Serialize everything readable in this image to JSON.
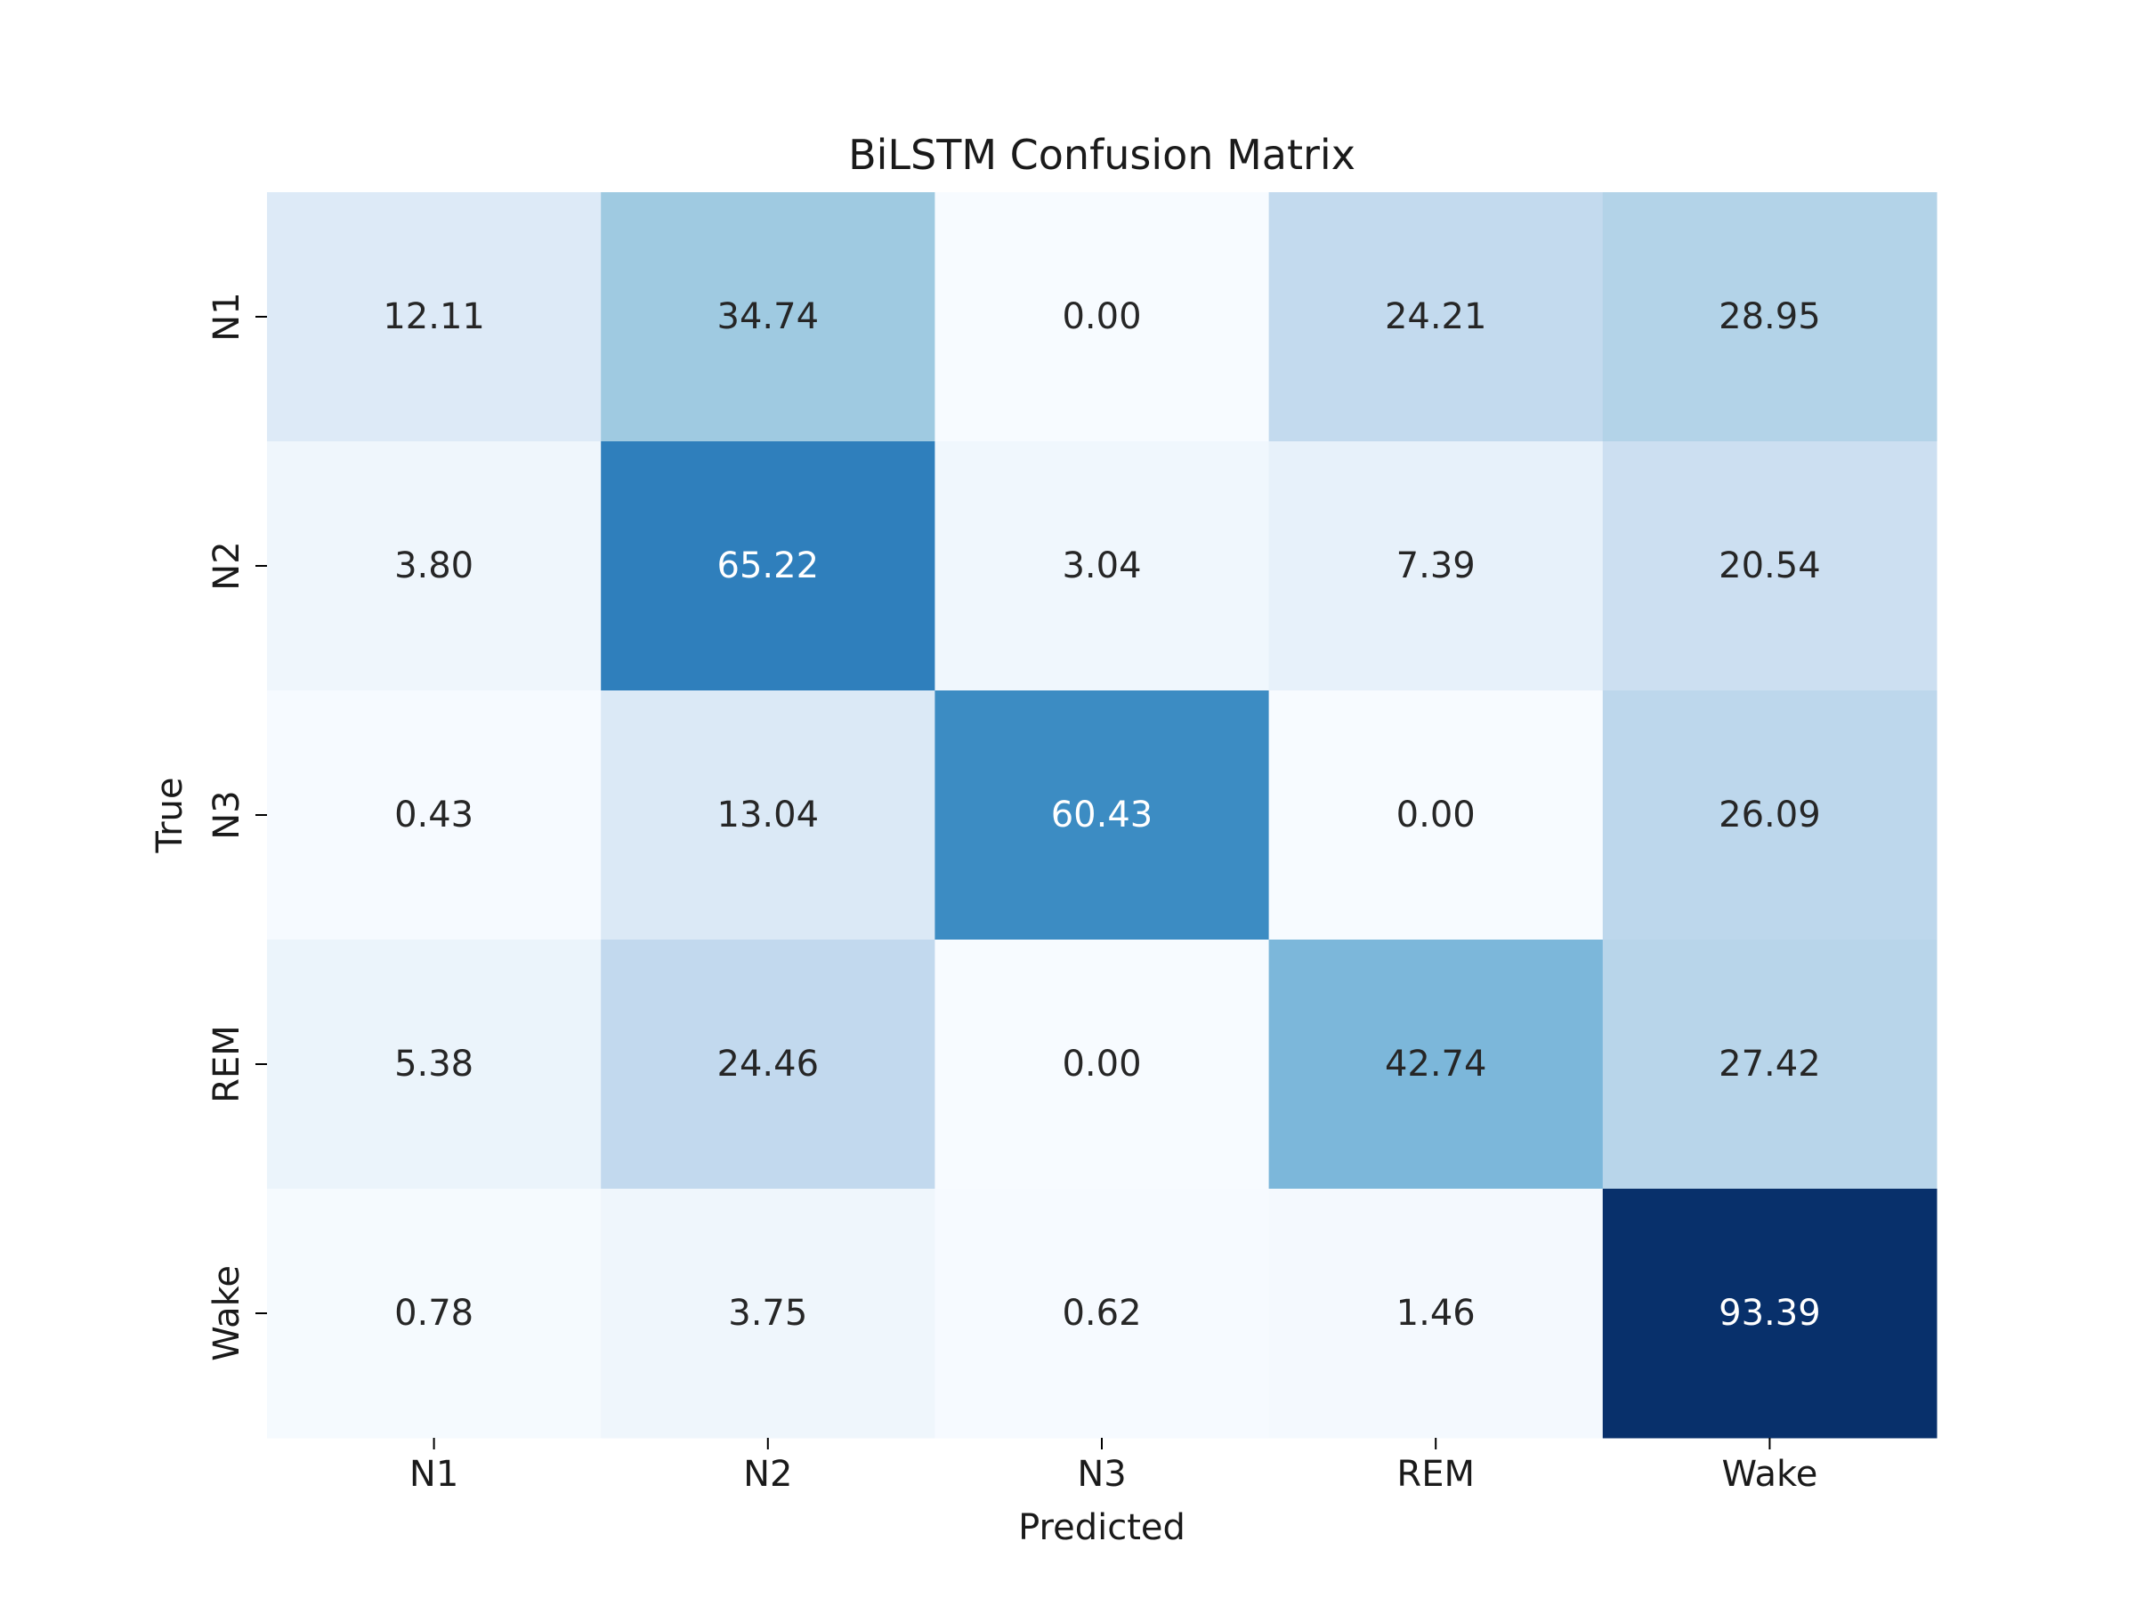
{
  "chart_data": {
    "type": "heatmap",
    "title": "BiLSTM Confusion Matrix",
    "xlabel": "Predicted",
    "ylabel": "True",
    "x_categories": [
      "N1",
      "N2",
      "N3",
      "REM",
      "Wake"
    ],
    "y_categories": [
      "N1",
      "N2",
      "N3",
      "REM",
      "Wake"
    ],
    "values": [
      [
        12.11,
        34.74,
        0.0,
        24.21,
        28.95
      ],
      [
        3.8,
        65.22,
        3.04,
        7.39,
        20.54
      ],
      [
        0.43,
        13.04,
        60.43,
        0.0,
        26.09
      ],
      [
        5.38,
        24.46,
        0.0,
        42.74,
        27.42
      ],
      [
        0.78,
        3.75,
        0.62,
        1.46,
        93.39
      ]
    ],
    "value_format": "0.00",
    "colormap": "Blues",
    "color_range": [
      0.0,
      93.39
    ],
    "colorbar": false,
    "grid": false
  }
}
